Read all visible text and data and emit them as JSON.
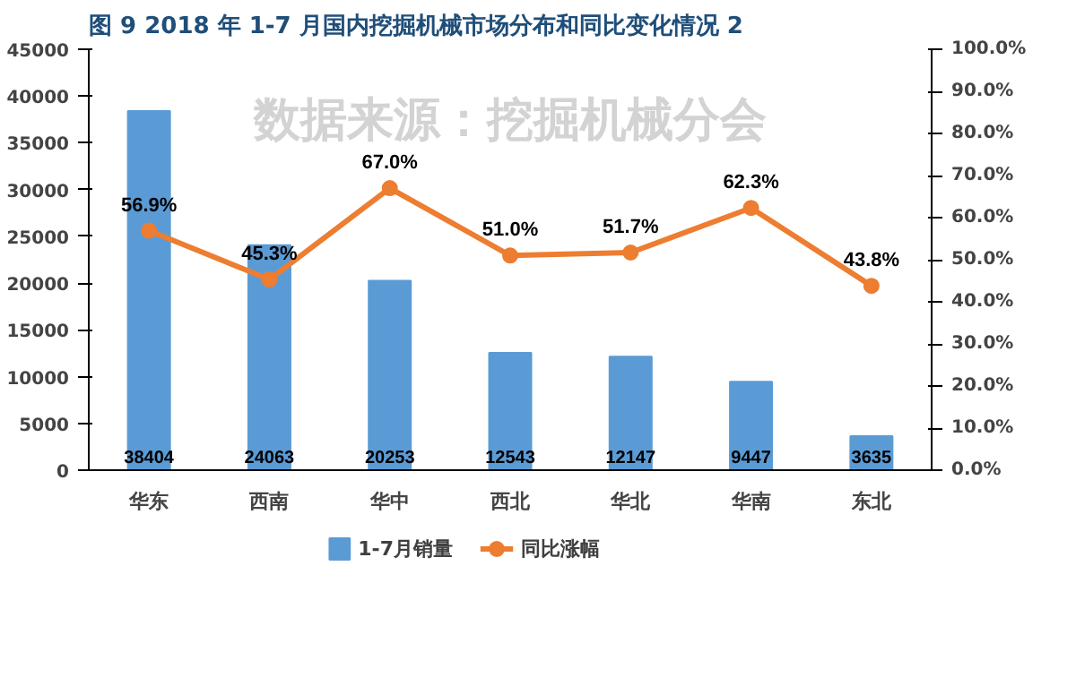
{
  "chart_data": {
    "type": "bar",
    "title": "图 9   2018 年 1-7 月国内挖掘机械市场分布和同比变化情况 2",
    "categories": [
      "华东",
      "西南",
      "华中",
      "西北",
      "华北",
      "华南",
      "东北"
    ],
    "series": [
      {
        "name": "1-7月销量",
        "color": "#5b9bd5",
        "values": [
          38404,
          24063,
          20253,
          12543,
          12147,
          9447,
          3635
        ]
      },
      {
        "name": "同比涨幅",
        "color": "#ed7d31",
        "type": "line",
        "axis": "y2",
        "marker": "circle",
        "values": [
          56.9,
          45.3,
          67.0,
          51.0,
          51.7,
          62.3,
          43.8
        ],
        "value_labels": [
          "56.9%",
          "45.3%",
          "67.0%",
          "51.0%",
          "51.7%",
          "62.3%",
          "43.8%"
        ]
      }
    ],
    "data_labels": true,
    "ylim": [
      0,
      45000
    ],
    "yticks": [
      0,
      5000,
      10000,
      15000,
      20000,
      25000,
      30000,
      35000,
      40000,
      45000
    ],
    "y2lim": [
      0,
      100
    ],
    "y2ticks": [
      {
        "value": 0,
        "label": "0.0%"
      },
      {
        "value": 10,
        "label": "10.0%"
      },
      {
        "value": 20,
        "label": "20.0%"
      },
      {
        "value": 30,
        "label": "30.0%"
      },
      {
        "value": 40,
        "label": "40.0%"
      },
      {
        "value": 50,
        "label": "50.0%"
      },
      {
        "value": 60,
        "label": "60.0%"
      },
      {
        "value": 70,
        "label": "70.0%"
      },
      {
        "value": 80,
        "label": "80.0%"
      },
      {
        "value": 90,
        "label": "90.0%"
      },
      {
        "value": 100,
        "label": "100.0%"
      }
    ],
    "grid": false,
    "legend": "bottom",
    "annotations": [
      "数据来源：挖掘机械分会"
    ]
  }
}
